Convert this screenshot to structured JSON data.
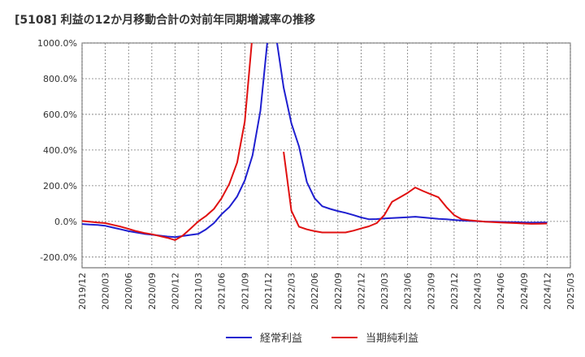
{
  "chart_data": {
    "type": "line",
    "title": "[5108]  利益の12か月移動合計の対前年同期増減率の推移",
    "x_ticks": [
      "2019/12",
      "2020/03",
      "2020/06",
      "2020/09",
      "2020/12",
      "2021/03",
      "2021/06",
      "2021/09",
      "2021/12",
      "2022/03",
      "2022/06",
      "2022/09",
      "2022/12",
      "2023/03",
      "2023/06",
      "2023/09",
      "2023/12",
      "2024/03",
      "2024/06",
      "2024/09",
      "2024/12",
      "2025/03"
    ],
    "y_ticks": [
      -200,
      0,
      200,
      400,
      600,
      800,
      1000
    ],
    "y_tick_labels": [
      "-200.0%",
      "0.0%",
      "200.0%",
      "400.0%",
      "600.0%",
      "800.0%",
      "1000.0%"
    ],
    "ylim": [
      -260,
      1000
    ],
    "xlim": [
      0,
      21
    ],
    "grid": true,
    "legend_position": "bottom",
    "series": [
      {
        "name": "経常利益",
        "color": "#1f1fd0",
        "points": [
          [
            0,
            -15
          ],
          [
            0.33,
            -18
          ],
          [
            0.67,
            -20
          ],
          [
            1,
            -25
          ],
          [
            1.33,
            -35
          ],
          [
            1.67,
            -45
          ],
          [
            2,
            -55
          ],
          [
            2.33,
            -62
          ],
          [
            2.67,
            -70
          ],
          [
            3,
            -75
          ],
          [
            3.33,
            -80
          ],
          [
            3.67,
            -85
          ],
          [
            4,
            -88
          ],
          [
            4.33,
            -82
          ],
          [
            4.67,
            -76
          ],
          [
            5,
            -70
          ],
          [
            5.33,
            -45
          ],
          [
            5.67,
            -10
          ],
          [
            6,
            40
          ],
          [
            6.33,
            80
          ],
          [
            6.67,
            140
          ],
          [
            7,
            230
          ],
          [
            7.33,
            370
          ],
          [
            7.67,
            620
          ],
          [
            8,
            1050
          ],
          [
            8.33,
            1050
          ],
          [
            8.67,
            750
          ],
          [
            9,
            550
          ],
          [
            9.33,
            420
          ],
          [
            9.67,
            220
          ],
          [
            10,
            130
          ],
          [
            10.33,
            85
          ],
          [
            10.67,
            70
          ],
          [
            11,
            58
          ],
          [
            11.33,
            48
          ],
          [
            11.67,
            35
          ],
          [
            12,
            22
          ],
          [
            12.33,
            12
          ],
          [
            12.67,
            13
          ],
          [
            13,
            16
          ],
          [
            13.33,
            19
          ],
          [
            13.67,
            21
          ],
          [
            14,
            23
          ],
          [
            14.33,
            26
          ],
          [
            14.67,
            22
          ],
          [
            15,
            18
          ],
          [
            15.33,
            14
          ],
          [
            15.67,
            12
          ],
          [
            16,
            8
          ],
          [
            16.33,
            5
          ],
          [
            16.67,
            3
          ],
          [
            17,
            1
          ],
          [
            17.33,
            -1
          ],
          [
            17.67,
            -2
          ],
          [
            18,
            -3
          ],
          [
            18.33,
            -4
          ],
          [
            18.67,
            -5
          ],
          [
            19,
            -6
          ],
          [
            19.33,
            -7
          ],
          [
            19.67,
            -6
          ],
          [
            20,
            -6
          ]
        ]
      },
      {
        "name": "当期純利益",
        "color": "#e01010",
        "points": [
          [
            0,
            2
          ],
          [
            0.33,
            -2
          ],
          [
            0.67,
            -6
          ],
          [
            1,
            -10
          ],
          [
            1.33,
            -20
          ],
          [
            1.67,
            -30
          ],
          [
            2,
            -42
          ],
          [
            2.33,
            -55
          ],
          [
            2.67,
            -65
          ],
          [
            3,
            -72
          ],
          [
            3.33,
            -82
          ],
          [
            3.67,
            -92
          ],
          [
            4,
            -105
          ],
          [
            4.33,
            -80
          ],
          [
            4.67,
            -40
          ],
          [
            5,
            0
          ],
          [
            5.33,
            30
          ],
          [
            5.67,
            70
          ],
          [
            6,
            130
          ],
          [
            6.33,
            210
          ],
          [
            6.67,
            330
          ],
          [
            7,
            560
          ],
          [
            7.33,
            1050
          ],
          null,
          [
            8.67,
            390
          ],
          [
            9,
            60
          ],
          [
            9.33,
            -30
          ],
          [
            9.67,
            -45
          ],
          [
            10,
            -55
          ],
          [
            10.33,
            -62
          ],
          [
            10.67,
            -62
          ],
          [
            11,
            -62
          ],
          [
            11.33,
            -62
          ],
          [
            11.67,
            -52
          ],
          [
            12,
            -40
          ],
          [
            12.33,
            -28
          ],
          [
            12.67,
            -10
          ],
          [
            13,
            35
          ],
          [
            13.33,
            110
          ],
          [
            13.67,
            135
          ],
          [
            14,
            160
          ],
          [
            14.33,
            190
          ],
          [
            14.67,
            170
          ],
          [
            15,
            152
          ],
          [
            15.33,
            135
          ],
          [
            15.67,
            80
          ],
          [
            16,
            35
          ],
          [
            16.33,
            12
          ],
          [
            16.67,
            6
          ],
          [
            17,
            2
          ],
          [
            17.33,
            -2
          ],
          [
            17.67,
            -4
          ],
          [
            18,
            -6
          ],
          [
            18.33,
            -8
          ],
          [
            18.67,
            -10
          ],
          [
            19,
            -12
          ],
          [
            19.33,
            -14
          ],
          [
            19.67,
            -13
          ],
          [
            20,
            -12
          ]
        ]
      }
    ]
  }
}
